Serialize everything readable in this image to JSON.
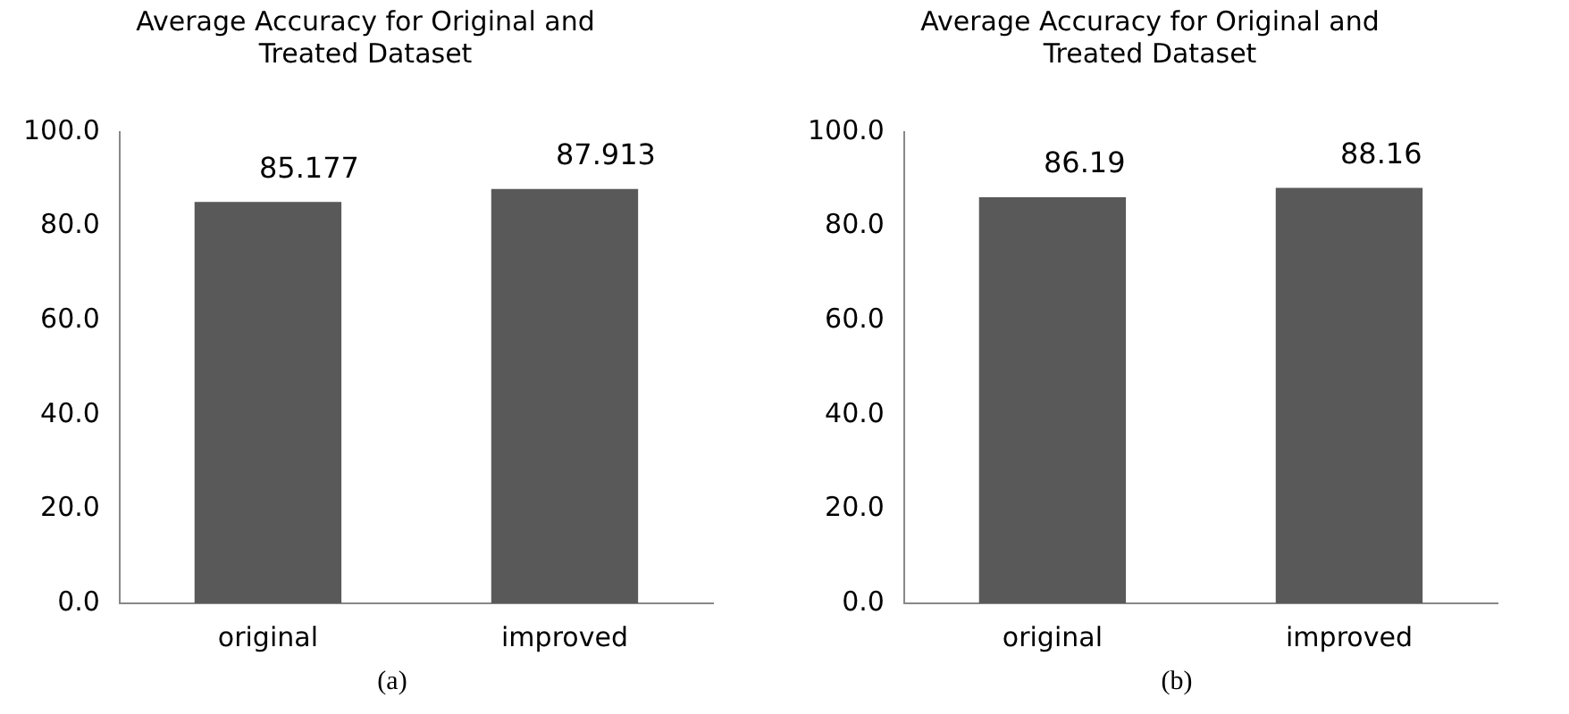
{
  "chart_data": [
    {
      "type": "bar",
      "title": "Average Accuracy for Original and Treated Dataset",
      "categories": [
        "original",
        "improved"
      ],
      "values": [
        85.177,
        87.913
      ],
      "color": "#595959",
      "ylim": [
        0,
        100
      ],
      "yticks": [
        {
          "value": 0,
          "label": "0.0"
        },
        {
          "value": 20,
          "label": "20.0"
        },
        {
          "value": 40,
          "label": "40.0"
        },
        {
          "value": 60,
          "label": "60.0"
        },
        {
          "value": 80,
          "label": "80.0"
        },
        {
          "value": 100,
          "label": "100.0"
        }
      ],
      "grid": false,
      "legend": false,
      "data_labels": true,
      "annotations": [
        "(a)"
      ]
    },
    {
      "type": "bar",
      "title": "Average Accuracy for Original and Treated Dataset",
      "categories": [
        "original",
        "improved"
      ],
      "values": [
        86.19,
        88.16
      ],
      "color": "#595959",
      "ylim": [
        0,
        100
      ],
      "yticks": [
        {
          "value": 0,
          "label": "0.0"
        },
        {
          "value": 20,
          "label": "20.0"
        },
        {
          "value": 40,
          "label": "40.0"
        },
        {
          "value": 60,
          "label": "60.0"
        },
        {
          "value": 80,
          "label": "80.0"
        },
        {
          "value": 100,
          "label": "100.0"
        }
      ],
      "grid": false,
      "legend": false,
      "data_labels": true,
      "annotations": [
        "(b)"
      ]
    }
  ]
}
